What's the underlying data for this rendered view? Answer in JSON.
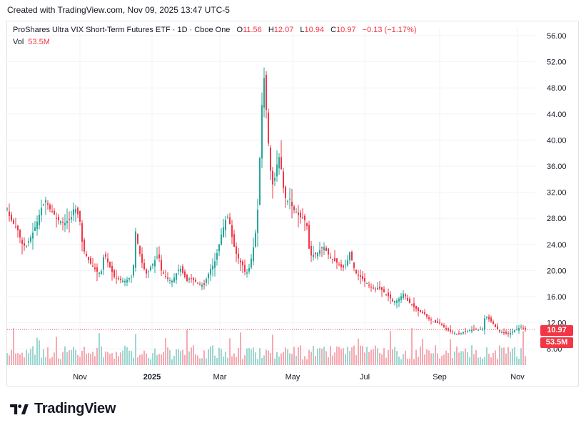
{
  "header": {
    "created_with": "Created with TradingView.com, Nov 09, 2025 13:47 UTC-5"
  },
  "legend": {
    "symbol": "ProShares Ultra VIX Short-Term Futures ETF · 1D · Cboe One",
    "o_label": "O",
    "o_value": "11.56",
    "h_label": "H",
    "h_value": "12.07",
    "l_label": "L",
    "l_value": "10.94",
    "c_label": "C",
    "c_value": "10.97",
    "change": "−0.13 (−1.17%)",
    "vol_label": "Vol",
    "vol_value": "53.5M"
  },
  "price_tag": "10.97",
  "volume_tag": "53.5M",
  "brand": {
    "name": "TradingView"
  },
  "colors": {
    "up": "#26a69a",
    "down": "#f23645",
    "up_vol": "#9ed6d0",
    "down_vol": "#f7a9b1",
    "grid": "#f0f3fa"
  },
  "chart_data": {
    "type": "candlestick",
    "title": "ProShares Ultra VIX Short-Term Futures ETF",
    "interval": "1D",
    "exchange": "Cboe One",
    "yticks": [
      "56.00",
      "52.00",
      "48.00",
      "44.00",
      "40.00",
      "36.00",
      "32.00",
      "28.00",
      "24.00",
      "20.00",
      "16.00",
      "12.00",
      "8.00"
    ],
    "ylim": [
      4,
      58
    ],
    "xticks": [
      "Nov",
      "2025",
      "Mar",
      "May",
      "Jul",
      "Sep",
      "Nov"
    ],
    "last_close": 10.97,
    "grid": true,
    "close_path_points": [
      [
        0,
        29.5
      ],
      [
        4,
        28
      ],
      [
        10,
        27
      ],
      [
        16,
        26
      ],
      [
        20,
        24.2
      ],
      [
        26,
        23.6
      ],
      [
        30,
        24.5
      ],
      [
        36,
        25.8
      ],
      [
        42,
        27.5
      ],
      [
        48,
        29.6
      ],
      [
        54,
        30.8
      ],
      [
        60,
        29.4
      ],
      [
        66,
        28.6
      ],
      [
        70,
        27.8
      ],
      [
        76,
        27.5
      ],
      [
        80,
        27.2
      ],
      [
        86,
        27.8
      ],
      [
        90,
        28.2
      ],
      [
        94,
        29.8
      ],
      [
        98,
        29
      ],
      [
        102,
        27.5
      ],
      [
        106,
        23.4
      ],
      [
        112,
        22
      ],
      [
        116,
        21.2
      ],
      [
        122,
        20.3
      ],
      [
        128,
        19.6
      ],
      [
        132,
        19.9
      ],
      [
        136,
        22.8
      ],
      [
        140,
        21.5
      ],
      [
        144,
        20.5
      ],
      [
        150,
        19
      ],
      [
        156,
        18.7
      ],
      [
        160,
        18.5
      ],
      [
        166,
        18.4
      ],
      [
        170,
        18.8
      ],
      [
        176,
        19.2
      ],
      [
        180,
        26
      ],
      [
        184,
        23.5
      ],
      [
        190,
        20.7
      ],
      [
        196,
        19.3
      ],
      [
        200,
        20.4
      ],
      [
        206,
        21.4
      ],
      [
        212,
        22.5
      ],
      [
        216,
        20
      ],
      [
        220,
        19.4
      ],
      [
        226,
        18.6
      ],
      [
        232,
        18.4
      ],
      [
        236,
        19.4
      ],
      [
        242,
        20.5
      ],
      [
        248,
        19.2
      ],
      [
        252,
        18.4
      ],
      [
        256,
        18.9
      ],
      [
        262,
        18.5
      ],
      [
        266,
        18.1
      ],
      [
        270,
        17.8
      ],
      [
        276,
        17.8
      ],
      [
        280,
        19
      ],
      [
        286,
        20.5
      ],
      [
        290,
        21
      ],
      [
        296,
        23.5
      ],
      [
        300,
        25.5
      ],
      [
        306,
        27.8
      ],
      [
        310,
        28.4
      ],
      [
        316,
        24.5
      ],
      [
        320,
        22.8
      ],
      [
        326,
        21.4
      ],
      [
        330,
        20.8
      ],
      [
        334,
        19.5
      ],
      [
        338,
        19.9
      ],
      [
        344,
        22.8
      ],
      [
        348,
        25.8
      ],
      [
        352,
        30.5
      ],
      [
        356,
        44
      ],
      [
        360,
        49.5
      ],
      [
        364,
        43
      ],
      [
        368,
        36
      ],
      [
        372,
        33.2
      ],
      [
        376,
        34.5
      ],
      [
        380,
        38
      ],
      [
        384,
        35.5
      ],
      [
        388,
        31.7
      ],
      [
        392,
        30.5
      ],
      [
        396,
        31
      ],
      [
        400,
        29.5
      ],
      [
        406,
        28.8
      ],
      [
        410,
        28.2
      ],
      [
        416,
        28
      ],
      [
        420,
        26.8
      ],
      [
        424,
        22.2
      ],
      [
        428,
        22.4
      ],
      [
        434,
        22.6
      ],
      [
        440,
        23.4
      ],
      [
        444,
        23.6
      ],
      [
        448,
        22.8
      ],
      [
        454,
        21.8
      ],
      [
        460,
        21.4
      ],
      [
        466,
        20.8
      ],
      [
        470,
        20.3
      ],
      [
        476,
        21.2
      ],
      [
        480,
        22.8
      ],
      [
        486,
        20.4
      ],
      [
        490,
        19.3
      ],
      [
        496,
        19
      ],
      [
        500,
        18.4
      ],
      [
        506,
        17.9
      ],
      [
        510,
        17.4
      ],
      [
        516,
        17.1
      ],
      [
        520,
        17.4
      ],
      [
        526,
        16.9
      ],
      [
        530,
        16.4
      ],
      [
        536,
        15.9
      ],
      [
        540,
        15.3
      ],
      [
        546,
        15.4
      ],
      [
        550,
        15.8
      ],
      [
        556,
        16.6
      ],
      [
        560,
        15.5
      ],
      [
        566,
        14.8
      ],
      [
        570,
        14.4
      ],
      [
        576,
        13.8
      ],
      [
        580,
        13.6
      ],
      [
        586,
        13.3
      ],
      [
        590,
        12.6
      ],
      [
        596,
        12.3
      ],
      [
        600,
        12
      ],
      [
        606,
        11.9
      ],
      [
        610,
        11.6
      ],
      [
        616,
        10.9
      ],
      [
        620,
        10.7
      ],
      [
        626,
        10.5
      ],
      [
        630,
        10.3
      ],
      [
        636,
        10.4
      ],
      [
        640,
        10.6
      ],
      [
        646,
        10.8
      ],
      [
        650,
        10.9
      ],
      [
        656,
        11
      ],
      [
        660,
        10.9
      ],
      [
        666,
        11.1
      ],
      [
        670,
        13.2
      ],
      [
        676,
        12.4
      ],
      [
        680,
        12
      ],
      [
        684,
        11.3
      ],
      [
        690,
        10.7
      ],
      [
        696,
        10.4
      ],
      [
        700,
        10.3
      ],
      [
        706,
        10.5
      ],
      [
        710,
        10.8
      ],
      [
        716,
        11.1
      ],
      [
        720,
        11.4
      ],
      [
        726,
        10.97
      ]
    ]
  }
}
